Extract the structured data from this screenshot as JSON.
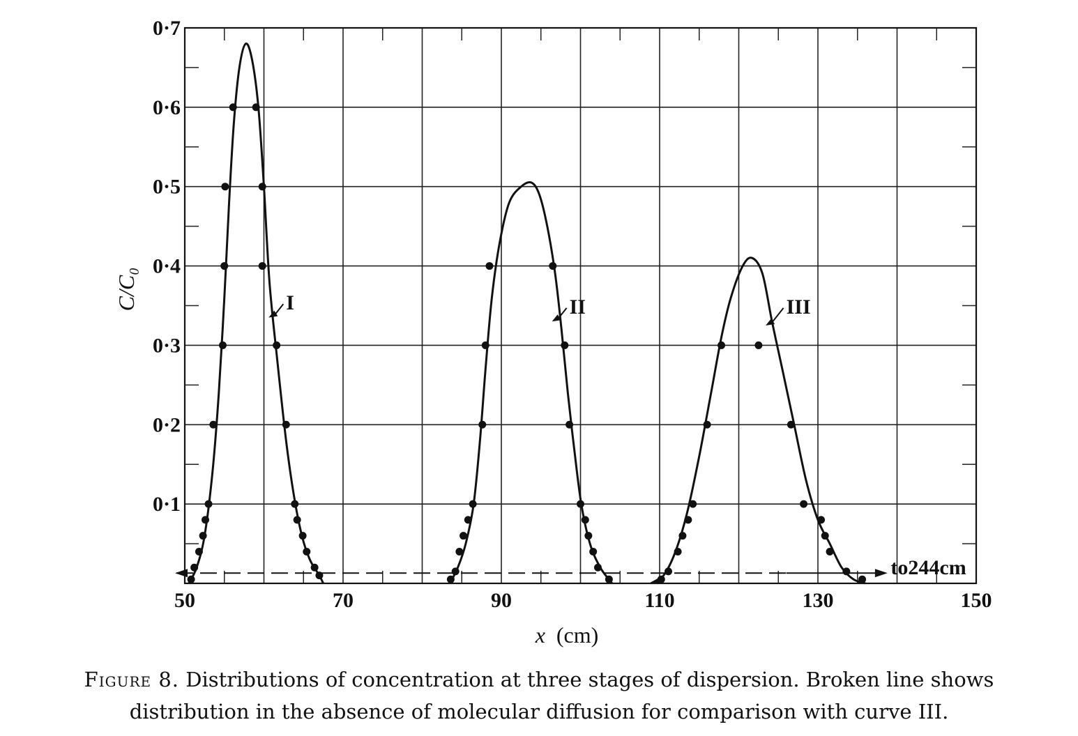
{
  "chart_data": {
    "type": "line",
    "xlabel_var": "x",
    "xlabel_unit": "(cm)",
    "ylabel": "C/C₀",
    "xlim": [
      50,
      150
    ],
    "ylim": [
      0,
      0.7
    ],
    "x_ticks": [
      {
        "value": 50,
        "label": "50"
      },
      {
        "value": 70,
        "label": "70"
      },
      {
        "value": 90,
        "label": "90"
      },
      {
        "value": 110,
        "label": "110"
      },
      {
        "value": 130,
        "label": "130"
      },
      {
        "value": 150,
        "label": "150"
      }
    ],
    "y_ticks": [
      {
        "value": 0.1,
        "label": "0·1"
      },
      {
        "value": 0.2,
        "label": "0·2"
      },
      {
        "value": 0.3,
        "label": "0·3"
      },
      {
        "value": 0.4,
        "label": "0·4"
      },
      {
        "value": 0.5,
        "label": "0·5"
      },
      {
        "value": 0.6,
        "label": "0·6"
      },
      {
        "value": 0.7,
        "label": "0·7"
      }
    ],
    "grid": true,
    "series": [
      {
        "name": "I",
        "curve": [
          [
            50.5,
            0.0
          ],
          [
            51.5,
            0.02
          ],
          [
            52.5,
            0.06
          ],
          [
            53.5,
            0.14
          ],
          [
            54.3,
            0.24
          ],
          [
            55.0,
            0.36
          ],
          [
            55.6,
            0.48
          ],
          [
            56.2,
            0.58
          ],
          [
            56.9,
            0.65
          ],
          [
            57.7,
            0.68
          ],
          [
            58.5,
            0.66
          ],
          [
            59.3,
            0.6
          ],
          [
            60.0,
            0.5
          ],
          [
            60.7,
            0.38
          ],
          [
            61.7,
            0.28
          ],
          [
            62.8,
            0.18
          ],
          [
            63.8,
            0.11
          ],
          [
            64.8,
            0.06
          ],
          [
            65.8,
            0.03
          ],
          [
            67.0,
            0.01
          ],
          [
            67.5,
            0.0
          ]
        ],
        "points": [
          [
            50.8,
            0.005
          ],
          [
            51.2,
            0.02
          ],
          [
            51.8,
            0.04
          ],
          [
            52.3,
            0.06
          ],
          [
            52.6,
            0.08
          ],
          [
            53.0,
            0.1
          ],
          [
            53.6,
            0.2
          ],
          [
            54.8,
            0.3
          ],
          [
            55.0,
            0.4
          ],
          [
            55.1,
            0.5
          ],
          [
            56.1,
            0.6
          ],
          [
            59.0,
            0.6
          ],
          [
            59.8,
            0.5
          ],
          [
            59.8,
            0.4
          ],
          [
            61.6,
            0.3
          ],
          [
            62.8,
            0.2
          ],
          [
            63.9,
            0.1
          ],
          [
            64.2,
            0.08
          ],
          [
            64.9,
            0.06
          ],
          [
            65.4,
            0.04
          ],
          [
            66.4,
            0.02
          ],
          [
            67.0,
            0.01
          ]
        ]
      },
      {
        "name": "II",
        "curve": [
          [
            83.5,
            0.0
          ],
          [
            84.5,
            0.02
          ],
          [
            85.5,
            0.05
          ],
          [
            86.5,
            0.1
          ],
          [
            87.3,
            0.18
          ],
          [
            88.0,
            0.27
          ],
          [
            88.8,
            0.36
          ],
          [
            89.8,
            0.43
          ],
          [
            91.0,
            0.48
          ],
          [
            92.5,
            0.5
          ],
          [
            93.8,
            0.505
          ],
          [
            94.8,
            0.49
          ],
          [
            95.8,
            0.45
          ],
          [
            96.8,
            0.39
          ],
          [
            97.6,
            0.32
          ],
          [
            98.4,
            0.24
          ],
          [
            99.2,
            0.17
          ],
          [
            100.1,
            0.1
          ],
          [
            101.2,
            0.05
          ],
          [
            102.5,
            0.02
          ],
          [
            104.0,
            0.0
          ]
        ],
        "points": [
          [
            83.6,
            0.005
          ],
          [
            84.2,
            0.015
          ],
          [
            84.7,
            0.04
          ],
          [
            85.2,
            0.06
          ],
          [
            85.8,
            0.08
          ],
          [
            86.4,
            0.1
          ],
          [
            87.6,
            0.2
          ],
          [
            88.0,
            0.3
          ],
          [
            88.5,
            0.4
          ],
          [
            96.5,
            0.4
          ],
          [
            98.0,
            0.3
          ],
          [
            98.6,
            0.2
          ],
          [
            100.0,
            0.1
          ],
          [
            100.6,
            0.08
          ],
          [
            101.0,
            0.06
          ],
          [
            101.6,
            0.04
          ],
          [
            102.2,
            0.02
          ],
          [
            103.6,
            0.005
          ]
        ]
      },
      {
        "name": "III",
        "curve": [
          [
            109.0,
            0.0
          ],
          [
            110.5,
            0.01
          ],
          [
            112.0,
            0.04
          ],
          [
            113.5,
            0.09
          ],
          [
            115.0,
            0.16
          ],
          [
            116.5,
            0.24
          ],
          [
            117.8,
            0.31
          ],
          [
            119.0,
            0.36
          ],
          [
            120.5,
            0.4
          ],
          [
            121.7,
            0.41
          ],
          [
            123.0,
            0.39
          ],
          [
            124.2,
            0.33
          ],
          [
            125.5,
            0.27
          ],
          [
            127.0,
            0.2
          ],
          [
            128.5,
            0.13
          ],
          [
            130.0,
            0.08
          ],
          [
            131.5,
            0.05
          ],
          [
            133.0,
            0.02
          ],
          [
            134.5,
            0.005
          ],
          [
            136.0,
            0.0
          ]
        ],
        "points": [
          [
            110.2,
            0.005
          ],
          [
            111.1,
            0.015
          ],
          [
            112.3,
            0.04
          ],
          [
            112.9,
            0.06
          ],
          [
            113.6,
            0.08
          ],
          [
            114.2,
            0.1
          ],
          [
            116.0,
            0.2
          ],
          [
            117.8,
            0.3
          ],
          [
            122.5,
            0.3
          ],
          [
            126.6,
            0.2
          ],
          [
            128.2,
            0.1
          ],
          [
            130.4,
            0.08
          ],
          [
            130.9,
            0.06
          ],
          [
            131.5,
            0.04
          ],
          [
            133.6,
            0.015
          ],
          [
            135.6,
            0.005
          ]
        ]
      }
    ],
    "reference_line": {
      "style": "dashed",
      "y": 0.013,
      "x_from": 50,
      "x_to": 150,
      "label": "to244cm"
    }
  },
  "caption": {
    "label": "Figure 8.",
    "text": "Distributions of concentration at three stages of dispersion. Broken line shows distribution in the absence of molecular diffusion for comparison with curve III."
  }
}
